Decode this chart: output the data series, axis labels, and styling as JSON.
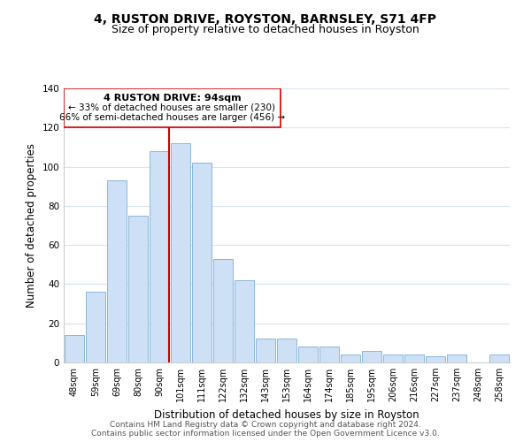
{
  "title": "4, RUSTON DRIVE, ROYSTON, BARNSLEY, S71 4FP",
  "subtitle": "Size of property relative to detached houses in Royston",
  "xlabel": "Distribution of detached houses by size in Royston",
  "ylabel": "Number of detached properties",
  "bar_labels": [
    "48sqm",
    "59sqm",
    "69sqm",
    "80sqm",
    "90sqm",
    "101sqm",
    "111sqm",
    "122sqm",
    "132sqm",
    "143sqm",
    "153sqm",
    "164sqm",
    "174sqm",
    "185sqm",
    "195sqm",
    "206sqm",
    "216sqm",
    "227sqm",
    "237sqm",
    "248sqm",
    "258sqm"
  ],
  "bar_values": [
    14,
    36,
    93,
    75,
    108,
    112,
    102,
    53,
    42,
    12,
    12,
    8,
    8,
    4,
    6,
    4,
    4,
    3,
    4,
    0,
    4
  ],
  "bar_color": "#cde0f5",
  "bar_edge_color": "#7bafd4",
  "marker_label": "4 RUSTON DRIVE: 94sqm",
  "annotation_line1": "← 33% of detached houses are smaller (230)",
  "annotation_line2": "66% of semi-detached houses are larger (456) →",
  "vline_color": "#cc0000",
  "vline_x_index": 4,
  "ylim": [
    0,
    140
  ],
  "yticks": [
    0,
    20,
    40,
    60,
    80,
    100,
    120,
    140
  ],
  "footer_line1": "Contains HM Land Registry data © Crown copyright and database right 2024.",
  "footer_line2": "Contains public sector information licensed under the Open Government Licence v3.0.",
  "bg_color": "#ffffff",
  "grid_color": "#d8e4f0",
  "title_fontsize": 10,
  "subtitle_fontsize": 9,
  "axis_label_fontsize": 8.5,
  "tick_fontsize": 7,
  "footer_fontsize": 6.5
}
